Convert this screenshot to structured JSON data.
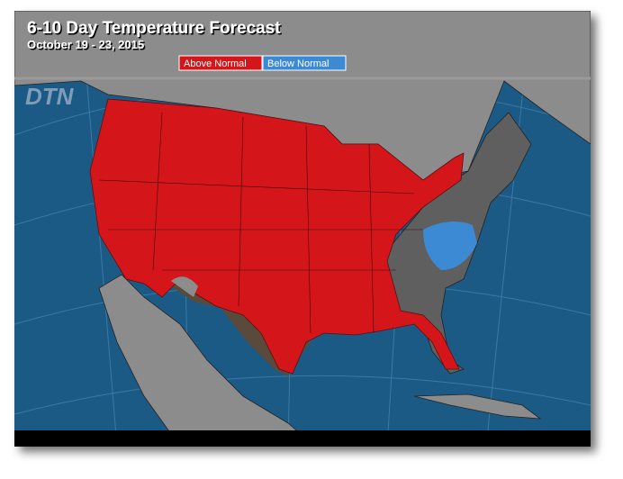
{
  "header": {
    "title": "6-10 Day Temperature Forecast",
    "subtitle": "October 19 - 23, 2015"
  },
  "legend": [
    {
      "label": "Above Normal",
      "color": "#d4161b"
    },
    {
      "label": "Below Normal",
      "color": "#3d8ad4"
    }
  ],
  "logo": "DTN"
}
